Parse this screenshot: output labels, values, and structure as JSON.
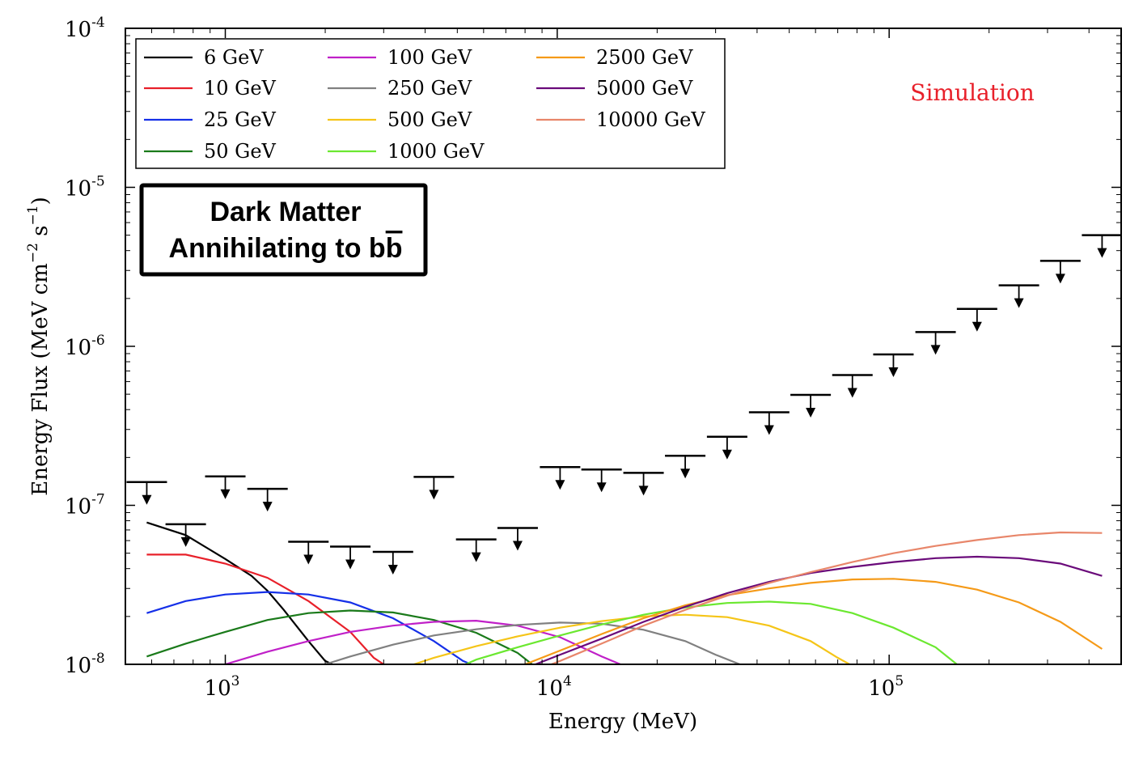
{
  "chart_data": {
    "type": "line",
    "xlabel": "Energy (MeV)",
    "ylabel": "Energy Flux (MeV cm^-2 s^-1)",
    "ylabel_parts": {
      "base": "Energy Flux (MeV cm",
      "exp1": "−2",
      "mid": " s",
      "exp2": "−1",
      "end": ")"
    },
    "xscale": "log",
    "yscale": "log",
    "xlim": [
      500,
      500000
    ],
    "ylim": [
      1e-08,
      0.0001
    ],
    "x_ticks": [
      {
        "value": 1000,
        "base": "10",
        "exp": "3"
      },
      {
        "value": 10000,
        "base": "10",
        "exp": "4"
      },
      {
        "value": 100000,
        "base": "10",
        "exp": "5"
      }
    ],
    "y_ticks": [
      {
        "value": 1e-08,
        "base": "10",
        "exp": "-8"
      },
      {
        "value": 1e-07,
        "base": "10",
        "exp": "-7"
      },
      {
        "value": 1e-06,
        "base": "10",
        "exp": "-6"
      },
      {
        "value": 1e-05,
        "base": "10",
        "exp": "-5"
      },
      {
        "value": 0.0001,
        "base": "10",
        "exp": "-4"
      }
    ],
    "legend_location": "top-left",
    "annotation": {
      "text": "Simulation",
      "color": "#e8202a"
    },
    "box_label": {
      "line1": "Dark Matter",
      "line2_prefix": "Annihilating to b",
      "line2_bar": "b"
    },
    "upper_limits": [
      {
        "x": 580,
        "y": 1.4e-07
      },
      {
        "x": 760,
        "y": 7.6e-08
      },
      {
        "x": 1000,
        "y": 1.52e-07
      },
      {
        "x": 1340,
        "y": 1.27e-07
      },
      {
        "x": 1780,
        "y": 5.9e-08
      },
      {
        "x": 2380,
        "y": 5.5e-08
      },
      {
        "x": 3200,
        "y": 5.1e-08
      },
      {
        "x": 4250,
        "y": 1.51e-07
      },
      {
        "x": 5700,
        "y": 6.1e-08
      },
      {
        "x": 7600,
        "y": 7.2e-08
      },
      {
        "x": 10200,
        "y": 1.74e-07
      },
      {
        "x": 13600,
        "y": 1.68e-07
      },
      {
        "x": 18200,
        "y": 1.6e-07
      },
      {
        "x": 24300,
        "y": 2.05e-07
      },
      {
        "x": 32500,
        "y": 2.7e-07
      },
      {
        "x": 43500,
        "y": 3.85e-07
      },
      {
        "x": 58000,
        "y": 4.95e-07
      },
      {
        "x": 77500,
        "y": 6.6e-07
      },
      {
        "x": 103000,
        "y": 8.9e-07
      },
      {
        "x": 138000,
        "y": 1.23e-06
      },
      {
        "x": 184000,
        "y": 1.72e-06
      },
      {
        "x": 246000,
        "y": 2.42e-06
      },
      {
        "x": 328000,
        "y": 3.45e-06
      },
      {
        "x": 438000,
        "y": 5e-06
      }
    ],
    "series": [
      {
        "name": "6 GeV",
        "color": "#000000",
        "x": [
          580,
          760,
          1000,
          1200,
          1340,
          1500,
          1780,
          2000,
          2100
        ],
        "y": [
          7.8e-08,
          6.5e-08,
          4.6e-08,
          3.6e-08,
          2.9e-08,
          2.2e-08,
          1.4e-08,
          1.05e-08,
          1e-08
        ]
      },
      {
        "name": "10 GeV",
        "color": "#e8202a",
        "x": [
          580,
          760,
          1000,
          1340,
          1780,
          2380,
          2800,
          3000
        ],
        "y": [
          4.9e-08,
          4.9e-08,
          4.3e-08,
          3.5e-08,
          2.5e-08,
          1.6e-08,
          1.1e-08,
          1e-08
        ]
      },
      {
        "name": "25 GeV",
        "color": "#1530e8",
        "x": [
          580,
          760,
          1000,
          1340,
          1780,
          2380,
          3200,
          4250,
          5200,
          5500
        ],
        "y": [
          2.1e-08,
          2.5e-08,
          2.75e-08,
          2.85e-08,
          2.75e-08,
          2.45e-08,
          1.95e-08,
          1.4e-08,
          1.05e-08,
          1e-08
        ]
      },
      {
        "name": "50 GeV",
        "color": "#1a7a1a",
        "x": [
          580,
          760,
          1000,
          1340,
          1780,
          2380,
          3200,
          4250,
          5700,
          7600,
          8400
        ],
        "y": [
          1.12e-08,
          1.35e-08,
          1.6e-08,
          1.9e-08,
          2.1e-08,
          2.18e-08,
          2.12e-08,
          1.9e-08,
          1.58e-08,
          1.18e-08,
          1e-08
        ]
      },
      {
        "name": "100 GeV",
        "color": "#c020c8",
        "x": [
          1000,
          1340,
          1780,
          2380,
          3200,
          4250,
          5700,
          7600,
          10200,
          13600,
          15500
        ],
        "y": [
          1e-08,
          1.2e-08,
          1.4e-08,
          1.6e-08,
          1.75e-08,
          1.85e-08,
          1.88e-08,
          1.75e-08,
          1.48e-08,
          1.12e-08,
          1e-08
        ]
      },
      {
        "name": "250 GeV",
        "color": "#808080",
        "x": [
          2000,
          2380,
          3200,
          4250,
          5700,
          7600,
          10200,
          13600,
          18200,
          24300,
          30000,
          35500
        ],
        "y": [
          1e-08,
          1.12e-08,
          1.33e-08,
          1.52e-08,
          1.66e-08,
          1.77e-08,
          1.83e-08,
          1.8e-08,
          1.65e-08,
          1.4e-08,
          1.15e-08,
          1e-08
        ]
      },
      {
        "name": "500 GeV",
        "color": "#f5c518",
        "x": [
          3700,
          4250,
          5700,
          7600,
          10200,
          13600,
          18200,
          24300,
          32500,
          43500,
          58000,
          70000,
          76000
        ],
        "y": [
          1e-08,
          1.1e-08,
          1.3e-08,
          1.5e-08,
          1.7e-08,
          1.87e-08,
          2e-08,
          2.05e-08,
          1.98e-08,
          1.75e-08,
          1.4e-08,
          1.1e-08,
          1e-08
        ]
      },
      {
        "name": "1000 GeV",
        "color": "#6be830",
        "x": [
          5300,
          5700,
          7600,
          10200,
          13600,
          18200,
          24300,
          32500,
          43500,
          58000,
          77500,
          103000,
          138000,
          160000
        ],
        "y": [
          1e-08,
          1.07e-08,
          1.28e-08,
          1.52e-08,
          1.78e-08,
          2.05e-08,
          2.28e-08,
          2.43e-08,
          2.48e-08,
          2.4e-08,
          2.1e-08,
          1.7e-08,
          1.28e-08,
          1e-08
        ]
      },
      {
        "name": "2500 GeV",
        "color": "#f59a18",
        "x": [
          8000,
          10200,
          13600,
          18200,
          24300,
          32500,
          43500,
          58000,
          77500,
          103000,
          138000,
          184000,
          246000,
          328000,
          438000
        ],
        "y": [
          1e-08,
          1.22e-08,
          1.55e-08,
          1.95e-08,
          2.35e-08,
          2.72e-08,
          3e-08,
          3.25e-08,
          3.42e-08,
          3.45e-08,
          3.3e-08,
          2.95e-08,
          2.45e-08,
          1.85e-08,
          1.25e-08
        ]
      },
      {
        "name": "5000 GeV",
        "color": "#6a0a7a",
        "x": [
          8600,
          10200,
          13600,
          18200,
          24300,
          32500,
          43500,
          58000,
          77500,
          103000,
          138000,
          184000,
          246000,
          328000,
          438000
        ],
        "y": [
          1e-08,
          1.15e-08,
          1.45e-08,
          1.85e-08,
          2.3e-08,
          2.8e-08,
          3.3e-08,
          3.75e-08,
          4.1e-08,
          4.4e-08,
          4.65e-08,
          4.75e-08,
          4.65e-08,
          4.3e-08,
          3.6e-08
        ]
      },
      {
        "name": "10000 GeV",
        "color": "#e8866a",
        "x": [
          9600,
          10200,
          13600,
          18200,
          24300,
          32500,
          43500,
          58000,
          77500,
          103000,
          138000,
          184000,
          246000,
          328000,
          438000
        ],
        "y": [
          1e-08,
          1.05e-08,
          1.35e-08,
          1.75e-08,
          2.2e-08,
          2.7e-08,
          3.25e-08,
          3.8e-08,
          4.4e-08,
          5e-08,
          5.55e-08,
          6.05e-08,
          6.5e-08,
          6.75e-08,
          6.7e-08
        ]
      }
    ]
  }
}
